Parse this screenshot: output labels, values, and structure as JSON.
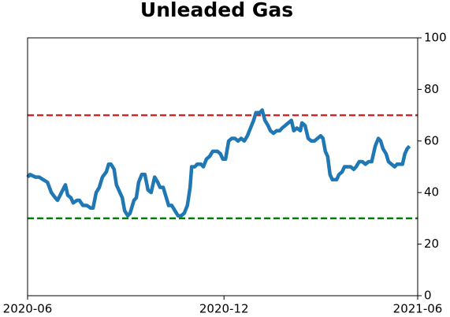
{
  "chart_data": {
    "type": "line",
    "title": "Unleaded Gas",
    "x": [
      2020.413,
      2020.419,
      2020.433,
      2020.443,
      2020.453,
      2020.464,
      2020.474,
      2020.484,
      2020.49,
      2020.5,
      2020.51,
      2020.516,
      2020.524,
      2020.53,
      2020.54,
      2020.546,
      2020.555,
      2020.565,
      2020.575,
      2020.581,
      2020.589,
      2020.597,
      2020.605,
      2020.615,
      2020.621,
      2020.627,
      2020.635,
      2020.641,
      2020.65,
      2020.656,
      2020.662,
      2020.67,
      2020.676,
      2020.686,
      2020.692,
      2020.698,
      2020.706,
      2020.714,
      2020.722,
      2020.73,
      2020.739,
      2020.747,
      2020.753,
      2020.761,
      2020.767,
      2020.775,
      2020.783,
      2020.791,
      2020.799,
      2020.807,
      2020.815,
      2020.823,
      2020.83,
      2020.834,
      2020.842,
      2020.848,
      2020.858,
      2020.864,
      2020.872,
      2020.88,
      2020.888,
      2020.9,
      2020.908,
      2020.914,
      2020.921,
      2020.929,
      2020.937,
      2020.945,
      2020.953,
      2020.961,
      2020.969,
      2020.977,
      2020.985,
      2020.993,
      2020.999,
      2021.009,
      2021.015,
      2021.022,
      2021.03,
      2021.036,
      2021.044,
      2021.052,
      2021.06,
      2021.066,
      2021.074,
      2021.082,
      2021.09,
      2021.096,
      2021.104,
      2021.113,
      2021.117,
      2021.125,
      2021.133,
      2021.141,
      2021.149,
      2021.157,
      2021.165,
      2021.171,
      2021.177,
      2021.183,
      2021.189,
      2021.195,
      2021.206,
      2021.212,
      2021.22,
      2021.226,
      2021.234,
      2021.242,
      2021.25,
      2021.256,
      2021.264,
      2021.272,
      2021.28,
      2021.288,
      2021.296,
      2021.305,
      2021.313,
      2021.319,
      2021.325,
      2021.333,
      2021.339,
      2021.347,
      2021.355,
      2021.361,
      2021.369,
      2021.375,
      2021.381,
      2021.387,
      2021.393
    ],
    "series": [
      {
        "color": "#1f77b4",
        "values": [
          46,
          47,
          46,
          46,
          45,
          44,
          40,
          38,
          37,
          40,
          43,
          39,
          38,
          36,
          37,
          37,
          35,
          35,
          34,
          34,
          40,
          42,
          46,
          48,
          51,
          51,
          49,
          43,
          40,
          38,
          33,
          31,
          32,
          37,
          38,
          44,
          47,
          47,
          41,
          40,
          46,
          44,
          42,
          42,
          39,
          35,
          35,
          33,
          31,
          31,
          32,
          35,
          42,
          50,
          50,
          51,
          51,
          50,
          53,
          54,
          56,
          56,
          55,
          53,
          53,
          60,
          61,
          61,
          60,
          61,
          60,
          62,
          65,
          68,
          71,
          71,
          72,
          68,
          66,
          64,
          63,
          64,
          64,
          65,
          66,
          67,
          68,
          64,
          65,
          64,
          67,
          66,
          61,
          60,
          60,
          61,
          62,
          61,
          56,
          54,
          47,
          45,
          45,
          47,
          48,
          50,
          50,
          50,
          49,
          50,
          52,
          52,
          51,
          52,
          52,
          58,
          61,
          60,
          57,
          55,
          52,
          51,
          50,
          51,
          51,
          51,
          55,
          57,
          58
        ]
      }
    ],
    "reference_lines": [
      {
        "value": 70,
        "color": "#d62728"
      },
      {
        "value": 30,
        "color": "#008000"
      }
    ],
    "xlim": [
      2020.413,
      2021.414
    ],
    "xticks": [
      {
        "value": 2020.413,
        "label": "2020-06"
      },
      {
        "value": 2020.917,
        "label": "2020-12"
      },
      {
        "value": 2021.414,
        "label": "2021-06"
      }
    ],
    "ylim": [
      0,
      100
    ],
    "yticks": [
      0,
      20,
      40,
      60,
      80,
      100
    ],
    "y_axis_side": "right",
    "grid": false
  }
}
